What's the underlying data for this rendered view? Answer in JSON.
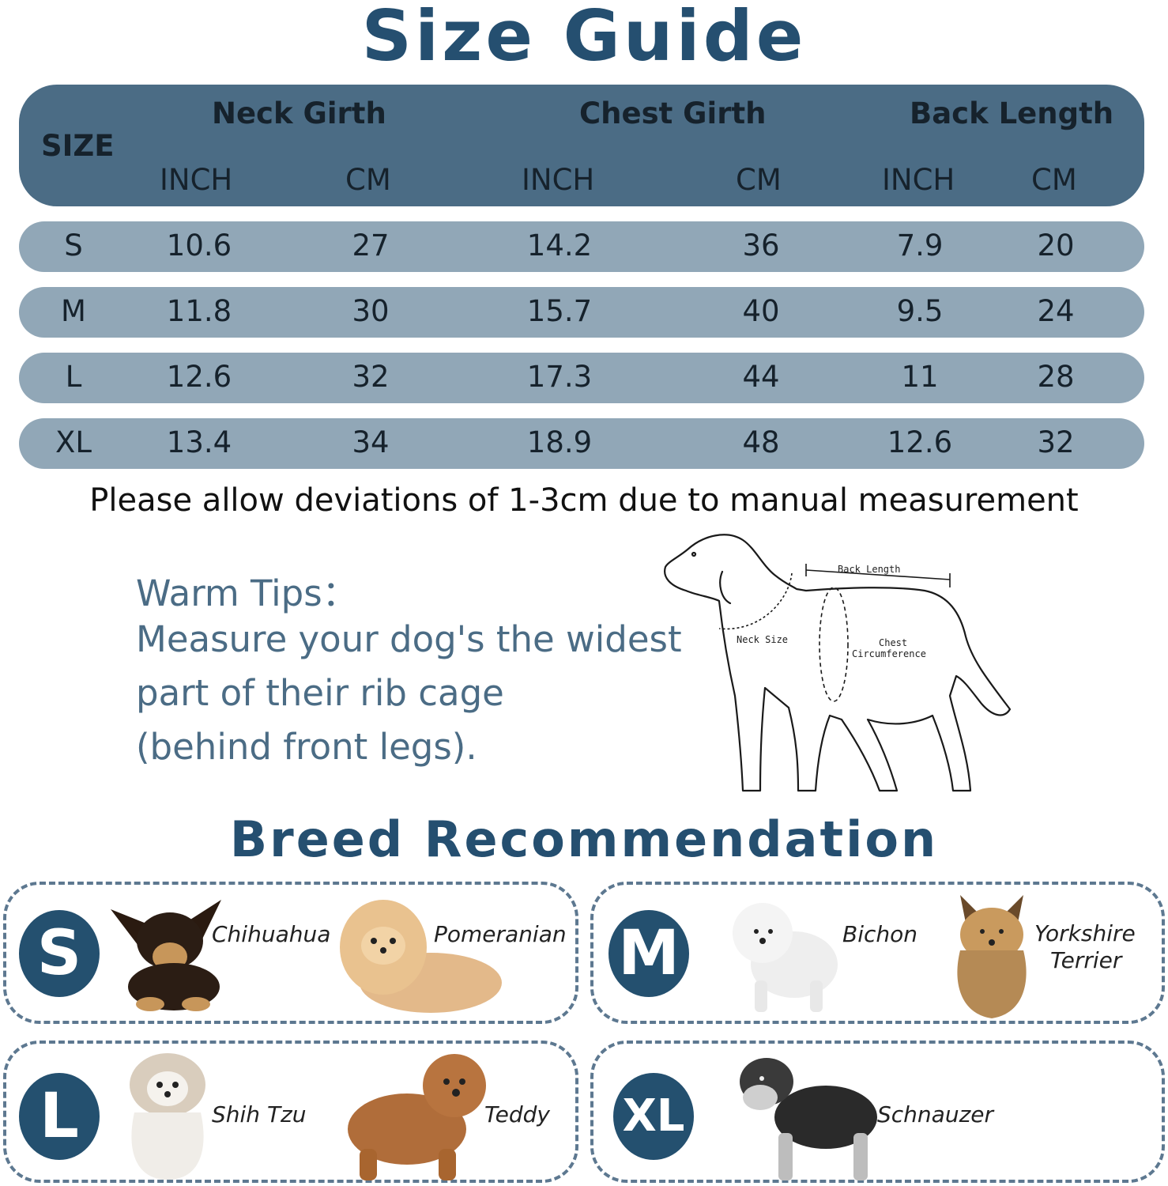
{
  "title": "Size Guide",
  "table": {
    "size_label": "SIZE",
    "groups": [
      "Neck Girth",
      "Chest Girth",
      "Back Length"
    ],
    "units": [
      "INCH",
      "CM",
      "INCH",
      "CM",
      "INCH",
      "CM"
    ],
    "rows": [
      {
        "size": "S",
        "values": [
          "10.6",
          "27",
          "14.2",
          "36",
          "7.9",
          "20"
        ]
      },
      {
        "size": "M",
        "values": [
          "11.8",
          "30",
          "15.7",
          "40",
          "9.5",
          "24"
        ]
      },
      {
        "size": "L",
        "values": [
          "12.6",
          "32",
          "17.3",
          "44",
          "11",
          "28"
        ]
      },
      {
        "size": "XL",
        "values": [
          "13.4",
          "34",
          "18.9",
          "48",
          "12.6",
          "32"
        ]
      }
    ]
  },
  "note": "Please allow deviations of 1-3cm due to manual measurement",
  "tips": {
    "heading": "Warm Tips：",
    "lines": [
      "Measure your dog's the widest",
      "part of their rib cage",
      "(behind front legs)."
    ]
  },
  "diagram": {
    "back_length": "Back Length",
    "neck_size": "Neck Size",
    "chest_line1": "Chest",
    "chest_line2": "Circumference"
  },
  "breeds_title": "Breed Recommendation",
  "breeds": {
    "s": {
      "badge": "S",
      "dog1": "Chihuahua",
      "dog2": "Pomeranian"
    },
    "m": {
      "badge": "M",
      "dog1": "Bichon",
      "dog2_line1": "Yorkshire",
      "dog2_line2": "Terrier"
    },
    "l": {
      "badge": "L",
      "dog1": "Shih Tzu",
      "dog2": "Teddy"
    },
    "xl": {
      "badge": "XL",
      "dog1": "Schnauzer"
    }
  },
  "colors": {
    "dark_blue": "#254f70",
    "header": "#4b6c85",
    "row": "#91a7b7"
  }
}
